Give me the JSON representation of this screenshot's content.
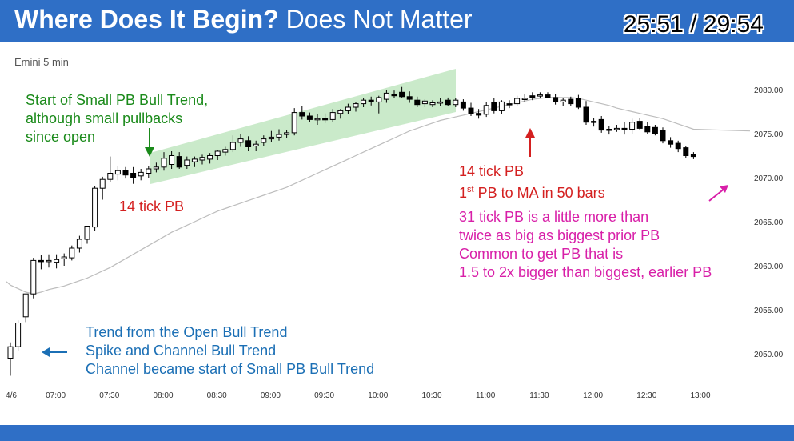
{
  "header": {
    "title_bold": "Where Does It Begin?",
    "title_rest": "Does Not Matter",
    "timer": "25:51 / 29:54"
  },
  "chart_data": {
    "type": "candlestick",
    "title": "Emini 5 min",
    "x_ticks": [
      "4/6",
      "07:00",
      "07:30",
      "08:00",
      "08:30",
      "09:00",
      "09:30",
      "10:00",
      "10:30",
      "11:00",
      "11:30",
      "12:00",
      "12:30",
      "13:00"
    ],
    "y_ticks": [
      "2080.00",
      "2075.00",
      "2070.00",
      "2065.00",
      "2060.00",
      "2055.00",
      "2050.00"
    ],
    "ylim": [
      2045,
      2083
    ],
    "annotations": {
      "start_pb": [
        "Start of Small PB Bull Trend,",
        "although small pullbacks",
        "since open"
      ],
      "pb14_left": "14 tick PB",
      "pb14_right": "14 tick PB",
      "first_pb_pre": "1",
      "first_pb_sup": "st",
      "first_pb_post": " PB to MA in 50 bars",
      "pink": [
        "31 tick PB is a little more than",
        "twice as big as biggest prior PB",
        "Common to get PB that is",
        "1.5 to 2x bigger than biggest, earlier PB"
      ],
      "blue": [
        "Trend from the Open Bull Trend",
        "Spike and Channel Bull Trend",
        "Channel became start of  Small PB Bull Trend"
      ]
    },
    "candles": [
      {
        "o": 2049.5,
        "h": 2051.3,
        "l": 2047.5,
        "c": 2050.8
      },
      {
        "o": 2050.8,
        "h": 2053.8,
        "l": 2050.3,
        "c": 2053.5
      },
      {
        "o": 2054.2,
        "h": 2056.8,
        "l": 2053.6,
        "c": 2056.8
      },
      {
        "o": 2056.8,
        "h": 2060.9,
        "l": 2056.3,
        "c": 2060.6
      },
      {
        "o": 2060.6,
        "h": 2061.2,
        "l": 2059.6,
        "c": 2060.5
      },
      {
        "o": 2060.6,
        "h": 2061.3,
        "l": 2059.8,
        "c": 2060.6
      },
      {
        "o": 2060.4,
        "h": 2061.3,
        "l": 2059.7,
        "c": 2060.7
      },
      {
        "o": 2060.8,
        "h": 2061.4,
        "l": 2060.0,
        "c": 2061.0
      },
      {
        "o": 2060.9,
        "h": 2062.3,
        "l": 2060.6,
        "c": 2062.0
      },
      {
        "o": 2062.0,
        "h": 2063.4,
        "l": 2061.5,
        "c": 2063.0
      },
      {
        "o": 2063.0,
        "h": 2064.5,
        "l": 2062.5,
        "c": 2064.5
      },
      {
        "o": 2064.4,
        "h": 2069.0,
        "l": 2064.0,
        "c": 2068.8
      },
      {
        "o": 2068.8,
        "h": 2070.1,
        "l": 2067.5,
        "c": 2069.8
      },
      {
        "o": 2069.8,
        "h": 2072.4,
        "l": 2069.5,
        "c": 2070.5
      },
      {
        "o": 2070.4,
        "h": 2071.3,
        "l": 2069.7,
        "c": 2070.8
      },
      {
        "o": 2070.8,
        "h": 2071.2,
        "l": 2069.9,
        "c": 2070.3
      },
      {
        "o": 2070.5,
        "h": 2071.2,
        "l": 2069.3,
        "c": 2070.0
      },
      {
        "o": 2070.2,
        "h": 2071.0,
        "l": 2069.7,
        "c": 2070.6
      },
      {
        "o": 2070.5,
        "h": 2071.3,
        "l": 2070.0,
        "c": 2071.0
      },
      {
        "o": 2071.0,
        "h": 2071.7,
        "l": 2070.6,
        "c": 2071.2
      },
      {
        "o": 2071.2,
        "h": 2072.9,
        "l": 2070.8,
        "c": 2072.2
      },
      {
        "o": 2071.5,
        "h": 2073.0,
        "l": 2071.0,
        "c": 2072.5
      },
      {
        "o": 2072.4,
        "h": 2072.9,
        "l": 2071.0,
        "c": 2071.2
      },
      {
        "o": 2071.4,
        "h": 2072.4,
        "l": 2071.0,
        "c": 2072.0
      },
      {
        "o": 2071.8,
        "h": 2072.4,
        "l": 2071.2,
        "c": 2072.1
      },
      {
        "o": 2072.0,
        "h": 2072.6,
        "l": 2071.5,
        "c": 2072.3
      },
      {
        "o": 2072.1,
        "h": 2072.8,
        "l": 2071.6,
        "c": 2072.5
      },
      {
        "o": 2072.5,
        "h": 2073.1,
        "l": 2072.0,
        "c": 2073.0
      },
      {
        "o": 2072.9,
        "h": 2073.5,
        "l": 2072.5,
        "c": 2073.2
      },
      {
        "o": 2073.2,
        "h": 2074.8,
        "l": 2072.9,
        "c": 2074.0
      },
      {
        "o": 2074.0,
        "h": 2075.0,
        "l": 2073.5,
        "c": 2074.4
      },
      {
        "o": 2074.2,
        "h": 2074.7,
        "l": 2073.0,
        "c": 2073.5
      },
      {
        "o": 2073.6,
        "h": 2074.2,
        "l": 2073.0,
        "c": 2073.8
      },
      {
        "o": 2074.0,
        "h": 2074.8,
        "l": 2073.6,
        "c": 2074.4
      },
      {
        "o": 2074.4,
        "h": 2075.3,
        "l": 2074.0,
        "c": 2074.6
      },
      {
        "o": 2074.6,
        "h": 2075.5,
        "l": 2074.2,
        "c": 2074.9
      },
      {
        "o": 2074.9,
        "h": 2075.4,
        "l": 2074.5,
        "c": 2075.1
      },
      {
        "o": 2075.1,
        "h": 2077.9,
        "l": 2074.8,
        "c": 2077.4
      },
      {
        "o": 2077.4,
        "h": 2078.1,
        "l": 2076.6,
        "c": 2077.0
      },
      {
        "o": 2077.0,
        "h": 2077.4,
        "l": 2076.3,
        "c": 2076.6
      },
      {
        "o": 2076.6,
        "h": 2077.2,
        "l": 2076.0,
        "c": 2076.7
      },
      {
        "o": 2076.7,
        "h": 2077.3,
        "l": 2076.2,
        "c": 2076.6
      },
      {
        "o": 2076.6,
        "h": 2077.8,
        "l": 2076.3,
        "c": 2077.4
      },
      {
        "o": 2077.3,
        "h": 2077.8,
        "l": 2076.7,
        "c": 2077.6
      },
      {
        "o": 2077.6,
        "h": 2078.4,
        "l": 2077.2,
        "c": 2078.0
      },
      {
        "o": 2078.0,
        "h": 2078.6,
        "l": 2077.5,
        "c": 2078.4
      },
      {
        "o": 2078.4,
        "h": 2079.0,
        "l": 2078.0,
        "c": 2078.8
      },
      {
        "o": 2078.8,
        "h": 2079.2,
        "l": 2078.2,
        "c": 2078.6
      },
      {
        "o": 2078.6,
        "h": 2079.3,
        "l": 2077.3,
        "c": 2079.1
      },
      {
        "o": 2078.9,
        "h": 2080.0,
        "l": 2078.5,
        "c": 2079.6
      },
      {
        "o": 2079.5,
        "h": 2079.9,
        "l": 2079.0,
        "c": 2079.3
      },
      {
        "o": 2079.7,
        "h": 2080.3,
        "l": 2079.1,
        "c": 2079.2
      },
      {
        "o": 2079.2,
        "h": 2079.8,
        "l": 2078.5,
        "c": 2078.9
      },
      {
        "o": 2078.8,
        "h": 2079.2,
        "l": 2078.0,
        "c": 2078.3
      },
      {
        "o": 2078.4,
        "h": 2078.9,
        "l": 2078.0,
        "c": 2078.7
      },
      {
        "o": 2078.3,
        "h": 2078.8,
        "l": 2078.0,
        "c": 2078.5
      },
      {
        "o": 2078.5,
        "h": 2079.0,
        "l": 2078.1,
        "c": 2078.6
      },
      {
        "o": 2078.8,
        "h": 2079.1,
        "l": 2078.1,
        "c": 2078.3
      },
      {
        "o": 2078.3,
        "h": 2079.0,
        "l": 2078.0,
        "c": 2078.8
      },
      {
        "o": 2078.6,
        "h": 2078.9,
        "l": 2077.6,
        "c": 2077.9
      },
      {
        "o": 2077.9,
        "h": 2078.5,
        "l": 2077.0,
        "c": 2077.3
      },
      {
        "o": 2077.3,
        "h": 2077.8,
        "l": 2076.7,
        "c": 2077.1
      },
      {
        "o": 2077.2,
        "h": 2078.6,
        "l": 2076.9,
        "c": 2078.2
      },
      {
        "o": 2078.5,
        "h": 2079.0,
        "l": 2077.3,
        "c": 2077.6
      },
      {
        "o": 2077.6,
        "h": 2078.8,
        "l": 2077.2,
        "c": 2078.6
      },
      {
        "o": 2078.4,
        "h": 2078.8,
        "l": 2077.9,
        "c": 2078.3
      },
      {
        "o": 2078.4,
        "h": 2079.3,
        "l": 2078.1,
        "c": 2079.0
      },
      {
        "o": 2079.0,
        "h": 2079.5,
        "l": 2078.6,
        "c": 2079.0
      },
      {
        "o": 2079.3,
        "h": 2079.7,
        "l": 2078.8,
        "c": 2079.1
      },
      {
        "o": 2079.3,
        "h": 2079.7,
        "l": 2079.0,
        "c": 2079.4
      },
      {
        "o": 2079.4,
        "h": 2079.7,
        "l": 2079.0,
        "c": 2079.1
      },
      {
        "o": 2079.1,
        "h": 2079.5,
        "l": 2078.3,
        "c": 2078.6
      },
      {
        "o": 2078.6,
        "h": 2079.0,
        "l": 2078.1,
        "c": 2078.8
      },
      {
        "o": 2078.9,
        "h": 2079.2,
        "l": 2078.1,
        "c": 2078.4
      },
      {
        "o": 2079.0,
        "h": 2079.4,
        "l": 2077.8,
        "c": 2078.0
      },
      {
        "o": 2078.0,
        "h": 2078.7,
        "l": 2076.0,
        "c": 2076.3
      },
      {
        "o": 2076.3,
        "h": 2076.8,
        "l": 2075.8,
        "c": 2076.4
      },
      {
        "o": 2076.6,
        "h": 2077.0,
        "l": 2075.1,
        "c": 2075.4
      },
      {
        "o": 2075.4,
        "h": 2075.9,
        "l": 2074.9,
        "c": 2075.5
      },
      {
        "o": 2075.5,
        "h": 2076.0,
        "l": 2075.2,
        "c": 2075.6
      },
      {
        "o": 2075.6,
        "h": 2076.3,
        "l": 2074.9,
        "c": 2075.5
      },
      {
        "o": 2075.5,
        "h": 2076.7,
        "l": 2075.0,
        "c": 2076.3
      },
      {
        "o": 2076.4,
        "h": 2076.8,
        "l": 2075.4,
        "c": 2075.6
      },
      {
        "o": 2075.8,
        "h": 2076.3,
        "l": 2075.0,
        "c": 2075.2
      },
      {
        "o": 2075.7,
        "h": 2076.0,
        "l": 2074.8,
        "c": 2075.0
      },
      {
        "o": 2075.4,
        "h": 2075.7,
        "l": 2073.9,
        "c": 2074.2
      },
      {
        "o": 2074.2,
        "h": 2074.6,
        "l": 2073.4,
        "c": 2073.8
      },
      {
        "o": 2073.9,
        "h": 2074.2,
        "l": 2072.9,
        "c": 2073.3
      },
      {
        "o": 2073.4,
        "h": 2073.6,
        "l": 2072.2,
        "c": 2072.5
      },
      {
        "o": 2072.6,
        "h": 2072.9,
        "l": 2072.1,
        "c": 2072.4
      }
    ],
    "moving_average": [
      2057.8,
      2057.4,
      2057.0,
      2056.8,
      2057.0,
      2057.3,
      2057.5,
      2057.7,
      2058.0,
      2058.3,
      2058.6,
      2059.0,
      2059.4,
      2059.8,
      2060.3,
      2060.8,
      2061.3,
      2061.8,
      2062.3,
      2062.8,
      2063.3,
      2063.8,
      2064.2,
      2064.6,
      2065.0,
      2065.4,
      2065.8,
      2066.2,
      2066.5,
      2066.8,
      2067.1,
      2067.4,
      2067.7,
      2068.0,
      2068.3,
      2068.6,
      2068.9,
      2069.3,
      2069.7,
      2070.1,
      2070.5,
      2070.9,
      2071.3,
      2071.7,
      2072.1,
      2072.5,
      2072.9,
      2073.3,
      2073.7,
      2074.1,
      2074.5,
      2074.9,
      2075.3,
      2075.6,
      2075.9,
      2076.2,
      2076.5,
      2076.7,
      2076.9,
      2077.1,
      2077.3,
      2077.5,
      2077.7,
      2077.9,
      2078.1,
      2078.3,
      2078.5,
      2078.7,
      2078.9,
      2079.0,
      2079.1,
      2079.1,
      2079.1,
      2079.1,
      2079.0,
      2078.8,
      2078.6,
      2078.4,
      2078.2,
      2077.9,
      2077.7,
      2077.5,
      2077.3,
      2077.1,
      2076.9,
      2076.7,
      2076.4,
      2076.1,
      2075.8,
      2075.5
    ]
  }
}
